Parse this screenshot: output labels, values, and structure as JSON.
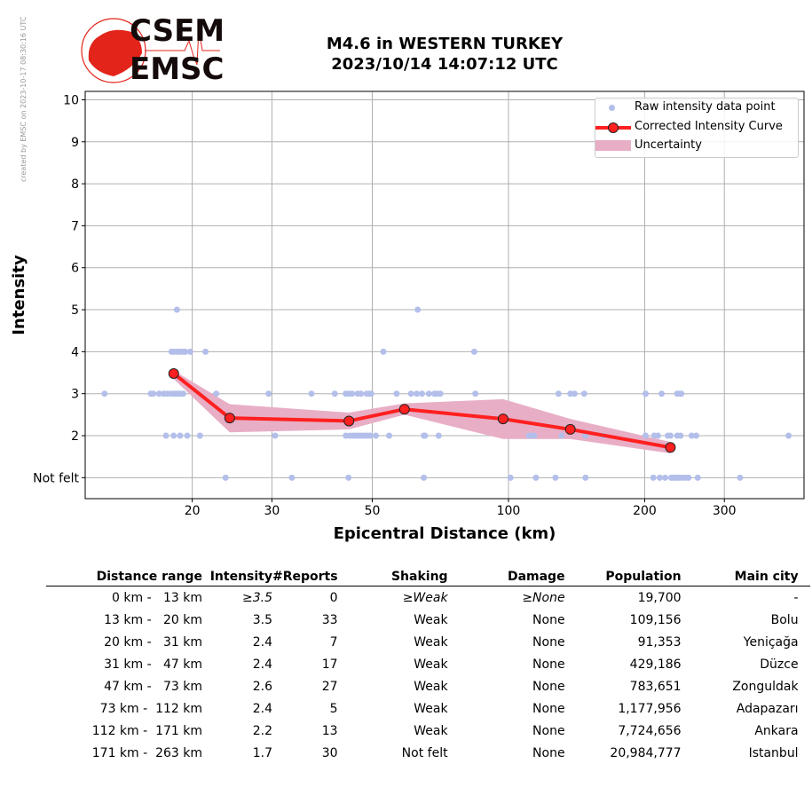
{
  "credit": "created by EMSC on 2023-10-17 08:30:16 UTC",
  "logo": {
    "line1": "CSEM",
    "line2": "EMSC"
  },
  "title": {
    "line1": "M4.6 in WESTERN TURKEY",
    "line2": "2023/10/14 14:07:12 UTC"
  },
  "chart_data": {
    "type": "scatter",
    "xlabel": "Epicentral Distance (km)",
    "ylabel": "Intensity",
    "xscale": "log",
    "xlim": [
      11.6,
      450
    ],
    "ylim": [
      0.5,
      10.2
    ],
    "xticks": [
      {
        "v": 20,
        "label": "20"
      },
      {
        "v": 30,
        "label": "30"
      },
      {
        "v": 50,
        "label": "50"
      },
      {
        "v": 100,
        "label": "100"
      },
      {
        "v": 200,
        "label": "200"
      },
      {
        "v": 300,
        "label": "300"
      }
    ],
    "yticks": [
      {
        "v": 1,
        "label": "Not felt"
      },
      {
        "v": 2,
        "label": "2"
      },
      {
        "v": 3,
        "label": "3"
      },
      {
        "v": 4,
        "label": "4"
      },
      {
        "v": 5,
        "label": "5"
      },
      {
        "v": 6,
        "label": "6"
      },
      {
        "v": 7,
        "label": "7"
      },
      {
        "v": 8,
        "label": "8"
      },
      {
        "v": 9,
        "label": "9"
      },
      {
        "v": 10,
        "label": "10"
      }
    ],
    "grid": true,
    "legend": {
      "placement": "top-right",
      "entries": [
        "Raw intensity data point",
        "Corrected Intensity Curve",
        "Uncertainty"
      ]
    },
    "colors": {
      "raw": "#b3bfea",
      "curve": "#ff2020",
      "band": "#e8aec6"
    },
    "raw_points": [
      [
        18.5,
        5
      ],
      [
        63,
        5
      ],
      [
        18.0,
        4
      ],
      [
        18.2,
        4
      ],
      [
        18.5,
        4
      ],
      [
        18.8,
        4
      ],
      [
        19.1,
        4
      ],
      [
        19.3,
        4
      ],
      [
        19.8,
        4
      ],
      [
        21.4,
        4
      ],
      [
        52.9,
        4
      ],
      [
        84,
        4
      ],
      [
        12.8,
        3
      ],
      [
        16.2,
        3
      ],
      [
        16.4,
        3
      ],
      [
        16.9,
        3
      ],
      [
        17.3,
        3
      ],
      [
        17.6,
        3
      ],
      [
        17.9,
        3
      ],
      [
        18.2,
        3
      ],
      [
        18.4,
        3
      ],
      [
        18.6,
        3
      ],
      [
        18.8,
        3
      ],
      [
        19.1,
        3
      ],
      [
        22.6,
        3
      ],
      [
        29.5,
        3
      ],
      [
        36.7,
        3
      ],
      [
        41.3,
        3
      ],
      [
        43.7,
        3
      ],
      [
        44.3,
        3
      ],
      [
        45.1,
        3
      ],
      [
        46.4,
        3
      ],
      [
        47.2,
        3
      ],
      [
        48.6,
        3
      ],
      [
        49.1,
        3
      ],
      [
        49.7,
        3
      ],
      [
        56.6,
        3
      ],
      [
        60.9,
        3
      ],
      [
        62.7,
        3
      ],
      [
        64.4,
        3
      ],
      [
        66.7,
        3
      ],
      [
        68.6,
        3
      ],
      [
        69.6,
        3
      ],
      [
        70.7,
        3
      ],
      [
        84.5,
        3
      ],
      [
        129,
        3
      ],
      [
        137,
        3
      ],
      [
        140,
        3
      ],
      [
        147,
        3
      ],
      [
        201,
        3
      ],
      [
        218,
        3
      ],
      [
        236,
        3
      ],
      [
        239,
        3
      ],
      [
        241,
        3
      ],
      [
        17.5,
        2
      ],
      [
        18.2,
        2
      ],
      [
        18.8,
        2
      ],
      [
        19.5,
        2
      ],
      [
        20.8,
        2
      ],
      [
        30.5,
        2
      ],
      [
        43.7,
        2
      ],
      [
        44.6,
        2
      ],
      [
        45.3,
        2
      ],
      [
        45.9,
        2
      ],
      [
        46.6,
        2
      ],
      [
        47.2,
        2
      ],
      [
        47.9,
        2
      ],
      [
        48.6,
        2
      ],
      [
        49.4,
        2
      ],
      [
        50.9,
        2
      ],
      [
        54.5,
        2
      ],
      [
        65,
        2
      ],
      [
        65.4,
        2
      ],
      [
        70.1,
        2
      ],
      [
        111,
        2
      ],
      [
        113,
        2
      ],
      [
        114,
        2
      ],
      [
        131,
        2
      ],
      [
        148,
        2
      ],
      [
        162,
        2
      ],
      [
        201,
        2
      ],
      [
        210,
        2
      ],
      [
        214,
        2
      ],
      [
        225,
        2
      ],
      [
        228,
        2
      ],
      [
        236,
        2
      ],
      [
        240,
        2
      ],
      [
        254,
        2
      ],
      [
        260,
        2
      ],
      [
        416,
        2
      ],
      [
        23.7,
        1
      ],
      [
        33.2,
        1
      ],
      [
        44.3,
        1
      ],
      [
        65,
        1
      ],
      [
        101,
        1
      ],
      [
        115,
        1
      ],
      [
        127,
        1
      ],
      [
        148,
        1
      ],
      [
        209,
        1
      ],
      [
        216,
        1
      ],
      [
        222,
        1
      ],
      [
        229,
        1
      ],
      [
        232,
        1
      ],
      [
        235,
        1
      ],
      [
        238,
        1
      ],
      [
        242,
        1
      ],
      [
        246,
        1
      ],
      [
        250,
        1
      ],
      [
        262,
        1
      ],
      [
        325,
        1
      ]
    ],
    "curve": [
      [
        18.2,
        3.48
      ],
      [
        24.2,
        2.42
      ],
      [
        44.4,
        2.35
      ],
      [
        58.9,
        2.63
      ],
      [
        97.3,
        2.4
      ],
      [
        137,
        2.15
      ],
      [
        228,
        1.72
      ]
    ],
    "band_upper": [
      3.55,
      2.75,
      2.55,
      2.77,
      2.87,
      2.4,
      1.85
    ],
    "band_lower": [
      3.35,
      2.08,
      2.15,
      2.5,
      1.92,
      1.92,
      1.58
    ]
  },
  "table": {
    "headers": [
      "Distance range",
      "Intensity",
      "#Reports",
      "Shaking",
      "Damage",
      "Population",
      "Main city"
    ],
    "rows": [
      [
        "0 km -   13 km",
        "≥3.5",
        "0",
        "≥Weak",
        "≥None",
        "19,700",
        "-"
      ],
      [
        "13 km -   20 km",
        "3.5",
        "33",
        "Weak",
        "None",
        "109,156",
        "Bolu"
      ],
      [
        "20 km -   31 km",
        "2.4",
        "7",
        "Weak",
        "None",
        "91,353",
        "Yeniçağa"
      ],
      [
        "31 km -   47 km",
        "2.4",
        "17",
        "Weak",
        "None",
        "429,186",
        "Düzce"
      ],
      [
        "47 km -   73 km",
        "2.6",
        "27",
        "Weak",
        "None",
        "783,651",
        "Zonguldak"
      ],
      [
        "73 km -  112 km",
        "2.4",
        "5",
        "Weak",
        "None",
        "1,177,956",
        "Adapazarı"
      ],
      [
        "112 km -  171 km",
        "2.2",
        "13",
        "Weak",
        "None",
        "7,724,656",
        "Ankara"
      ],
      [
        "171 km -  263 km",
        "1.7",
        "30",
        "Not felt",
        "None",
        "20,984,777",
        "Istanbul"
      ]
    ]
  }
}
